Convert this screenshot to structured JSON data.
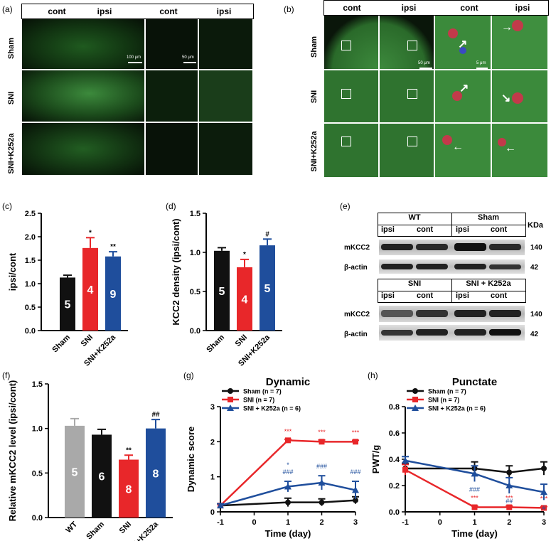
{
  "panel_labels": {
    "a": "(a)",
    "b": "(b)",
    "c": "(c)",
    "d": "(d)",
    "e": "(e)",
    "f": "(f)",
    "g": "(g)",
    "h": "(h)"
  },
  "panel_a": {
    "headers": [
      "cont",
      "ipsi",
      "cont",
      "ipsi"
    ],
    "rows": [
      "Sham",
      "SNI",
      "SNI+K252a"
    ],
    "scale_bars": [
      "100 μm",
      "50 μm"
    ]
  },
  "panel_b": {
    "headers": [
      "cont",
      "ipsi",
      "cont",
      "ipsi"
    ],
    "rows": [
      "Sham",
      "SNI",
      "SNI+K252a"
    ],
    "scale_bars": [
      "50 μm",
      "5 μm"
    ]
  },
  "panel_e": {
    "top_headers": [
      "WT",
      "Sham"
    ],
    "bottom_headers": [
      "SNI",
      "SNI + K252a"
    ],
    "lane_labels": [
      "ipsi",
      "cont",
      "ipsi",
      "cont"
    ],
    "kda_label": "KDa",
    "bands": [
      {
        "name": "mKCC2",
        "kda": "140"
      },
      {
        "name": "β-actin",
        "kda": "42"
      }
    ]
  },
  "colors": {
    "sham": "#111111",
    "sni": "#e8272a",
    "k252a": "#1f4e9c",
    "wt": "#a9a9a9"
  },
  "chart_data": [
    {
      "id": "c",
      "type": "bar",
      "ylabel": "ipsi/cont",
      "categories": [
        "Sham",
        "SNI",
        "SNI+K252a"
      ],
      "values": [
        1.13,
        1.76,
        1.58
      ],
      "errors": [
        0.05,
        0.22,
        0.1
      ],
      "n_labels": [
        "5",
        "4",
        "9"
      ],
      "sig": [
        "",
        "*",
        "**"
      ],
      "ylim": [
        0,
        2.5
      ],
      "yticks": [
        "0.0",
        "0.5",
        "1.0",
        "1.5",
        "2.0",
        "2.5"
      ],
      "colors": [
        "#111111",
        "#e8272a",
        "#1f4e9c"
      ]
    },
    {
      "id": "d",
      "type": "bar",
      "ylabel": "KCC2 density (ipsi/cont)",
      "categories": [
        "Sham",
        "SNI",
        "SNI+K252a"
      ],
      "values": [
        1.02,
        0.81,
        1.09
      ],
      "errors": [
        0.04,
        0.1,
        0.08
      ],
      "n_labels": [
        "5",
        "4",
        "5"
      ],
      "sig": [
        "",
        "*",
        "#"
      ],
      "ylim": [
        0,
        1.5
      ],
      "yticks": [
        "0.0",
        "0.5",
        "1.0",
        "1.5"
      ],
      "colors": [
        "#111111",
        "#e8272a",
        "#1f4e9c"
      ]
    },
    {
      "id": "f",
      "type": "bar",
      "ylabel": "Relative mKCC2 level (ipsi/cont)",
      "categories": [
        "WT",
        "Sham",
        "SNI",
        "SNI+K252a"
      ],
      "values": [
        1.03,
        0.93,
        0.65,
        1.0
      ],
      "errors": [
        0.08,
        0.06,
        0.05,
        0.1
      ],
      "n_labels": [
        "5",
        "6",
        "8",
        "8"
      ],
      "sig": [
        "",
        "",
        "**",
        "##"
      ],
      "ylim": [
        0,
        1.5
      ],
      "yticks": [
        "0.0",
        "0.5",
        "1.0",
        "1.5"
      ],
      "colors": [
        "#a9a9a9",
        "#111111",
        "#e8272a",
        "#1f4e9c"
      ]
    },
    {
      "id": "g",
      "type": "line",
      "title": "Dynamic",
      "ylabel": "Dynamic score",
      "xlabel": "Time (day)",
      "x": [
        -1,
        1,
        2,
        3
      ],
      "xlim": [
        -1,
        3
      ],
      "xticks": [
        "-1",
        "0",
        "1",
        "2",
        "3"
      ],
      "ylim": [
        0,
        3
      ],
      "yticks": [
        "0",
        "1",
        "2",
        "3"
      ],
      "series": [
        {
          "name": "Sham (n = 7)",
          "values": [
            0.18,
            0.27,
            0.27,
            0.33
          ],
          "errors": [
            0.05,
            0.12,
            0.1,
            0.1
          ],
          "color": "#111111",
          "marker": "circle"
        },
        {
          "name": "SNI (n = 7)",
          "values": [
            0.18,
            2.04,
            2.0,
            2.0
          ],
          "errors": [
            0.05,
            0.03,
            0.05,
            0.04
          ],
          "color": "#e8272a",
          "marker": "square",
          "sig": [
            "",
            "***",
            "***",
            "***"
          ]
        },
        {
          "name": "SNI + K252a (n = 6)",
          "values": [
            0.18,
            0.72,
            0.83,
            0.62
          ],
          "errors": [
            0.05,
            0.15,
            0.2,
            0.25
          ],
          "color": "#1f4e9c",
          "marker": "triangle",
          "sig": [
            "",
            "###",
            "###",
            "###"
          ],
          "sig2": [
            "",
            "*",
            "",
            ""
          ]
        }
      ],
      "legend": "top-left"
    },
    {
      "id": "h",
      "type": "line",
      "title": "Punctate",
      "ylabel": "PWT/g",
      "xlabel": "Time (day)",
      "x": [
        -1,
        1,
        2,
        3
      ],
      "xlim": [
        -1,
        3
      ],
      "xticks": [
        "-1",
        "0",
        "1",
        "2",
        "3"
      ],
      "ylim": [
        0,
        0.8
      ],
      "yticks": [
        "0.0",
        "0.2",
        "0.4",
        "0.6",
        "0.8"
      ],
      "series": [
        {
          "name": "Sham (n = 7)",
          "values": [
            0.33,
            0.33,
            0.3,
            0.33
          ],
          "errors": [
            0.04,
            0.05,
            0.05,
            0.05
          ],
          "color": "#111111",
          "marker": "circle"
        },
        {
          "name": "SNI (n = 7)",
          "values": [
            0.32,
            0.035,
            0.035,
            0.03
          ],
          "errors": [
            0.04,
            0.01,
            0.01,
            0.01
          ],
          "color": "#e8272a",
          "marker": "square",
          "sig": [
            "",
            "***",
            "***",
            "***"
          ]
        },
        {
          "name": "SNI + K252a (n = 6)",
          "values": [
            0.39,
            0.29,
            0.2,
            0.15
          ],
          "errors": [
            0.03,
            0.06,
            0.06,
            0.06
          ],
          "color": "#1f4e9c",
          "marker": "triangle",
          "sig": [
            "",
            "###",
            "##",
            "#"
          ]
        }
      ],
      "legend": "top-left"
    }
  ]
}
